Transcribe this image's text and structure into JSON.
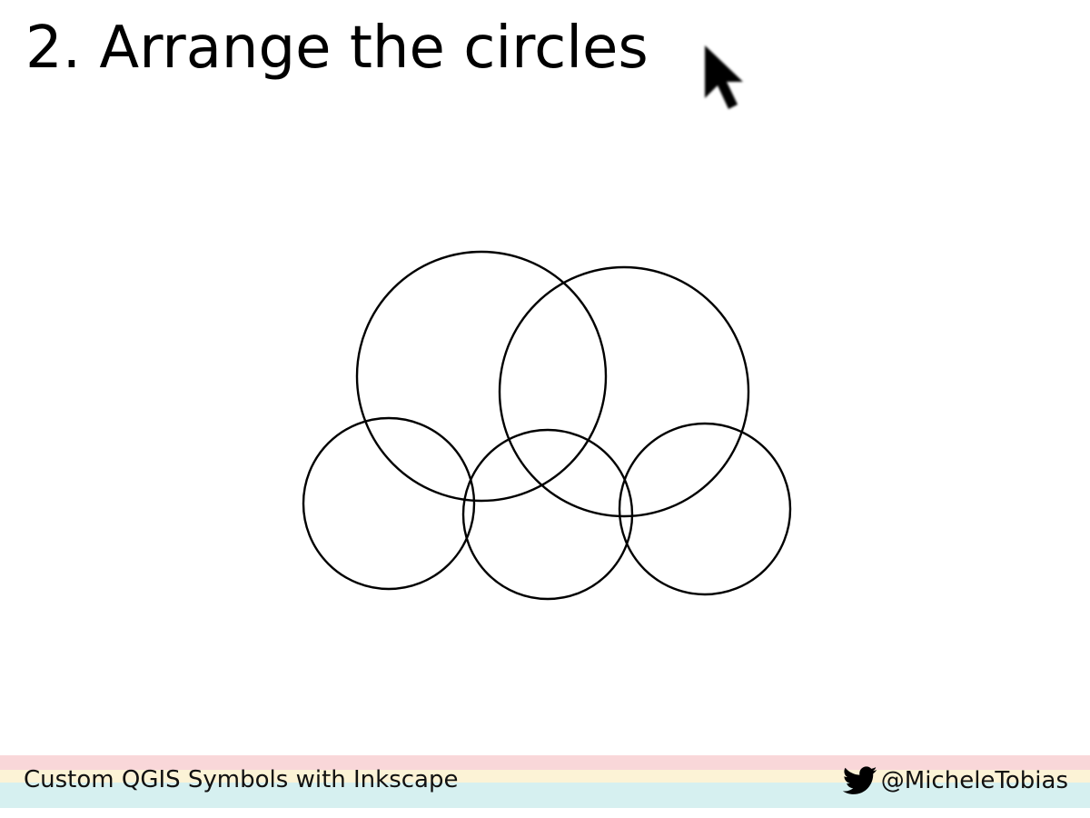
{
  "slide": {
    "title": "2. Arrange the circles",
    "footer_title": "Custom QGIS Symbols with Inkscape",
    "footer_handle": "@MicheleTobias"
  },
  "icons": {
    "pointer": "cursor-arrow-icon",
    "social": "twitter-bird-icon"
  },
  "colors": {
    "stripe_pink": "#f9d7d9",
    "stripe_yellow": "#fcf3d6",
    "stripe_cyan": "#d6f0f0",
    "text": "#000000"
  }
}
